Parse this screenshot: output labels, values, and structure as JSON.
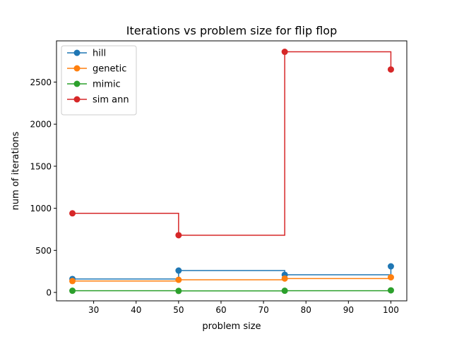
{
  "chart_data": {
    "type": "line",
    "step": "post",
    "title": "Iterations vs problem size for flip flop",
    "xlabel": "problem size",
    "ylabel": "num of iterations",
    "xlim": [
      21.25,
      103.75
    ],
    "ylim": [
      -100,
      2990
    ],
    "xticks": [
      30,
      40,
      50,
      60,
      70,
      80,
      90,
      100
    ],
    "yticks": [
      0,
      500,
      1000,
      1500,
      2000,
      2500
    ],
    "x": [
      25,
      50,
      75,
      100
    ],
    "series": [
      {
        "name": "hill",
        "color": "#1f77b4",
        "values": [
          160,
          260,
          210,
          310
        ]
      },
      {
        "name": "genetic",
        "color": "#ff7f0e",
        "values": [
          135,
          150,
          165,
          180
        ]
      },
      {
        "name": "mimic",
        "color": "#2ca02c",
        "values": [
          20,
          18,
          20,
          25
        ]
      },
      {
        "name": "sim ann",
        "color": "#d62728",
        "values": [
          940,
          680,
          2860,
          2650
        ]
      }
    ],
    "legend": {
      "location": "upper-left"
    },
    "grid": false
  }
}
